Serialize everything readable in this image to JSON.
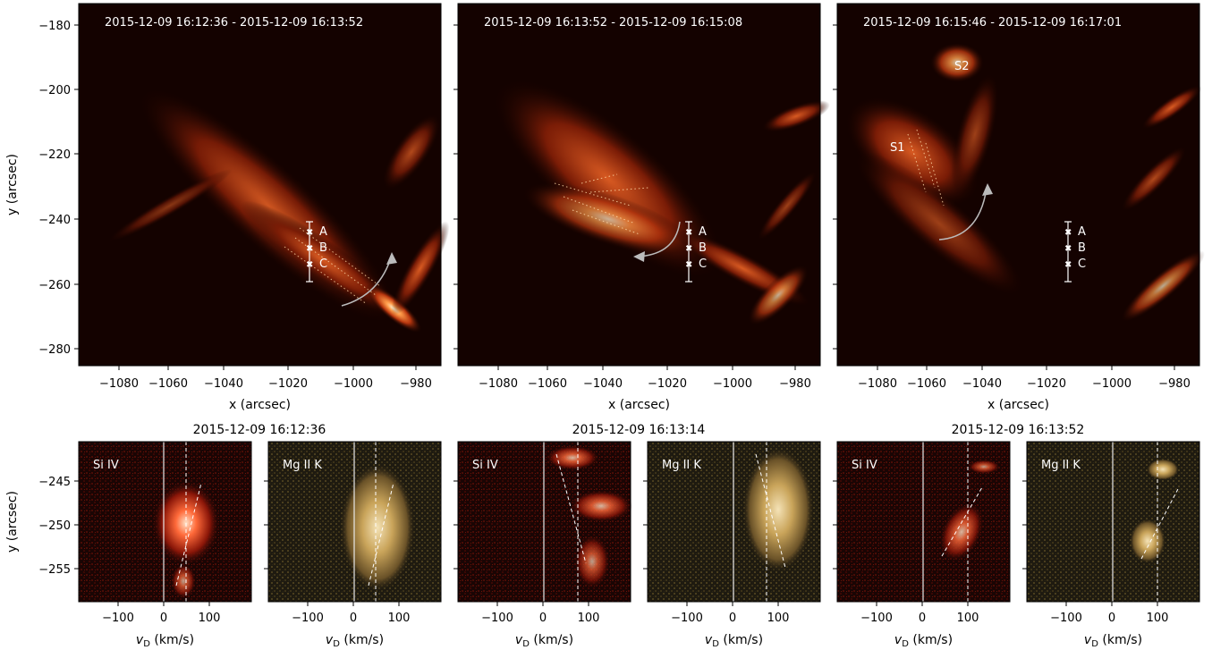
{
  "top_panels": [
    {
      "title": "2015-12-09 16:12:36 - 2015-12-09 16:13:52",
      "point_labels": [
        "A",
        "B",
        "C"
      ],
      "region_labels": []
    },
    {
      "title": "2015-12-09 16:13:52 - 2015-12-09 16:15:08",
      "point_labels": [
        "A",
        "B",
        "C"
      ],
      "region_labels": []
    },
    {
      "title": "2015-12-09 16:15:46 - 2015-12-09 16:17:01",
      "point_labels": [
        "A",
        "B",
        "C"
      ],
      "region_labels": [
        "S2",
        "S1"
      ]
    }
  ],
  "top_axes": {
    "xlabel": "x (arcsec)",
    "ylabel": "y (arcsec)",
    "x_ticks": [
      "−1080",
      "−1060",
      "−1040",
      "−1020",
      "−1000",
      "−980"
    ],
    "y_ticks": [
      "−180",
      "−200",
      "−220",
      "−240",
      "−260",
      "−280"
    ]
  },
  "bottom_groups": [
    {
      "time": "2015-12-09 16:12:36",
      "left_label": "Si IV",
      "right_label": "Mg II K"
    },
    {
      "time": "2015-12-09 16:13:14",
      "left_label": "Si IV",
      "right_label": "Mg II K"
    },
    {
      "time": "2015-12-09 16:13:52",
      "left_label": "Si IV",
      "right_label": "Mg II K"
    }
  ],
  "bottom_axes": {
    "xlabel": "vD (km/s)",
    "ylabel": "y (arcsec)",
    "x_ticks": [
      "−100",
      "0",
      "100"
    ],
    "y_ticks": [
      "−245",
      "−250",
      "−255"
    ]
  },
  "colors": {
    "aia_colormap": "#e05a1a",
    "si_colormap": "#c43a1a",
    "mg_colormap": "#c9a45a"
  }
}
